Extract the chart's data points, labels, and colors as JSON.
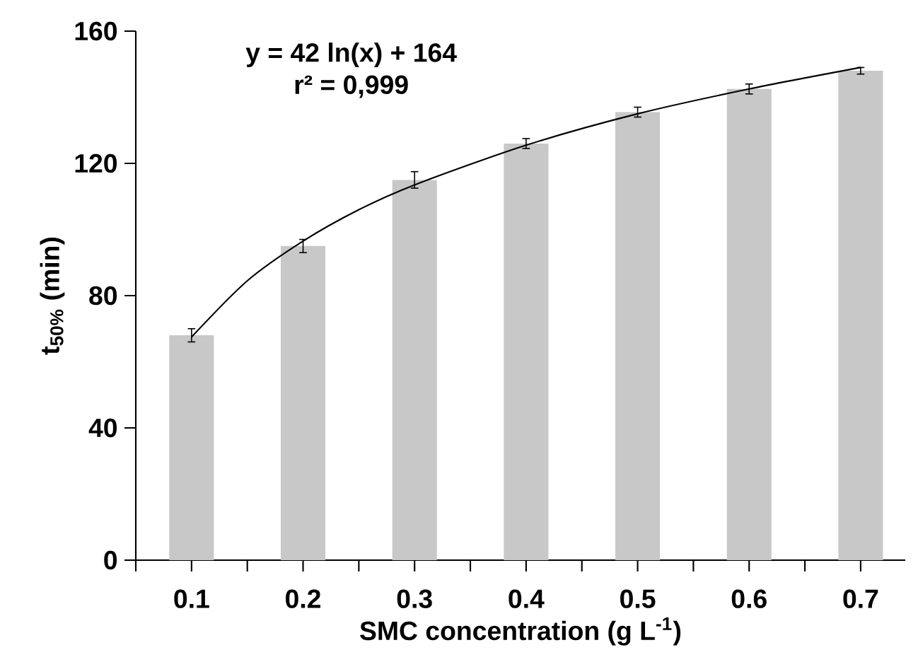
{
  "chart_data": {
    "type": "bar",
    "xlabel": "SMC concentration (g L$^{-1}$)",
    "ylabel": "t$_{50%}$ (min)",
    "annotations": [
      "y = 42 ln(x) + 164",
      "r² = 0,999"
    ],
    "x": [
      0.1,
      0.2,
      0.3,
      0.4,
      0.5,
      0.6,
      0.7
    ],
    "xlim": [
      0.05,
      0.74
    ],
    "xticks": [
      {
        "value": 0.05,
        "label": null
      },
      0.1,
      {
        "value": 0.15,
        "label": null
      },
      0.2,
      {
        "value": 0.25,
        "label": null
      },
      0.3,
      {
        "value": 0.35,
        "label": null
      },
      0.4,
      {
        "value": 0.45,
        "label": null
      },
      0.5,
      {
        "value": 0.55,
        "label": null
      },
      0.6,
      {
        "value": 0.65,
        "label": null
      },
      0.7
    ],
    "ylim": [
      0,
      160
    ],
    "yticks": [
      0,
      40,
      80,
      120,
      160
    ],
    "series": [
      {
        "color": "#c8c8c8",
        "values": [
          68,
          95,
          115,
          126,
          135.5,
          142.5,
          148
        ],
        "errors": [
          2,
          2,
          2.5,
          1.5,
          1.5,
          1.5,
          1
        ]
      },
      {
        "type": "line",
        "color": "#000000",
        "x": [
          0.1,
          0.15,
          0.2,
          0.25,
          0.3,
          0.4,
          0.5,
          0.6,
          0.7
        ],
        "values": [
          67.5,
          84.5,
          96.5,
          106,
          113.5,
          125.5,
          135,
          142.5,
          149
        ]
      }
    ]
  }
}
